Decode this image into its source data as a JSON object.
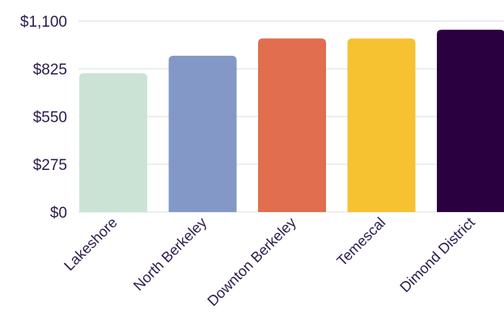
{
  "chart_data": {
    "type": "bar",
    "categories": [
      "Lakeshore",
      "North Berkeley",
      "Downton Berkeley",
      "Temescal",
      "Dimond District"
    ],
    "values": [
      800,
      900,
      1000,
      1000,
      1050
    ],
    "colors": [
      "#cbe3d5",
      "#8498c8",
      "#e06e4f",
      "#f6c232",
      "#2b0040"
    ],
    "yticks": [
      0,
      275,
      550,
      825,
      1100
    ],
    "ytick_labels": [
      "$0",
      "$275",
      "$550",
      "$825",
      "$1,100"
    ],
    "ylim": [
      0,
      1100
    ],
    "grid": true,
    "title": "",
    "xlabel": "",
    "ylabel": ""
  }
}
